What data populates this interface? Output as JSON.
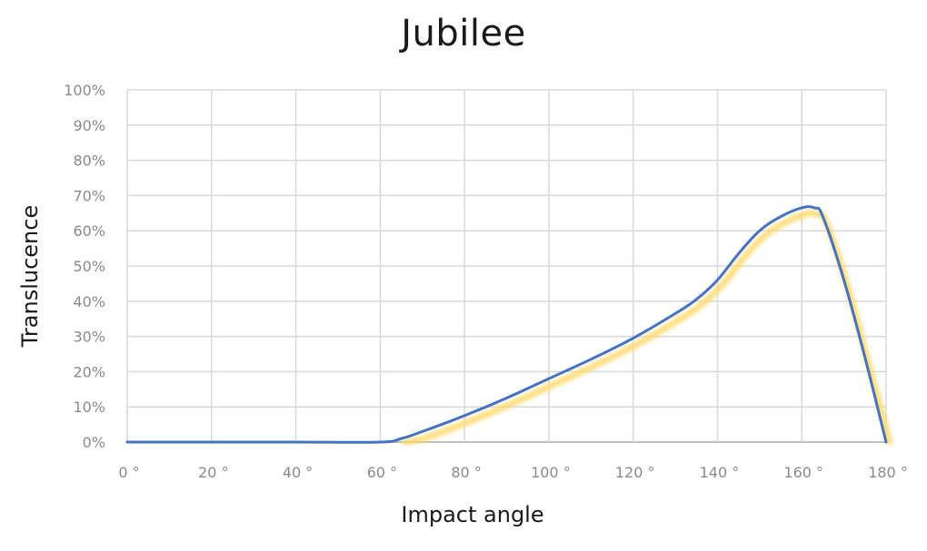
{
  "chart_data": {
    "type": "line",
    "title": "Jubilee",
    "xlabel": "Impact angle",
    "ylabel": "Translucence",
    "xlim": [
      0,
      180
    ],
    "ylim": [
      0,
      100
    ],
    "x_ticks": [
      "0 °",
      "20 °",
      "40 °",
      "60 °",
      "80 °",
      "100 °",
      "120 °",
      "140 °",
      "160 °",
      "180 °"
    ],
    "y_ticks": [
      "0%",
      "10%",
      "20%",
      "30%",
      "40%",
      "50%",
      "60%",
      "70%",
      "80%",
      "90%",
      "100%"
    ],
    "grid": true,
    "legend": null,
    "series": [
      {
        "name": "Jubilee",
        "color": "#4472c4",
        "shadow_color": "#ffd966",
        "x": [
          0,
          20,
          40,
          60,
          65,
          70,
          80,
          90,
          100,
          110,
          120,
          130,
          135,
          140,
          145,
          150,
          155,
          160,
          163,
          165,
          170,
          175,
          180
        ],
        "y": [
          0,
          0,
          0,
          0,
          1,
          3,
          7.5,
          12.5,
          18,
          23.5,
          29.5,
          36.5,
          40.5,
          46,
          53.5,
          60,
          64,
          66.5,
          66.5,
          64,
          46,
          24,
          0
        ]
      }
    ]
  }
}
